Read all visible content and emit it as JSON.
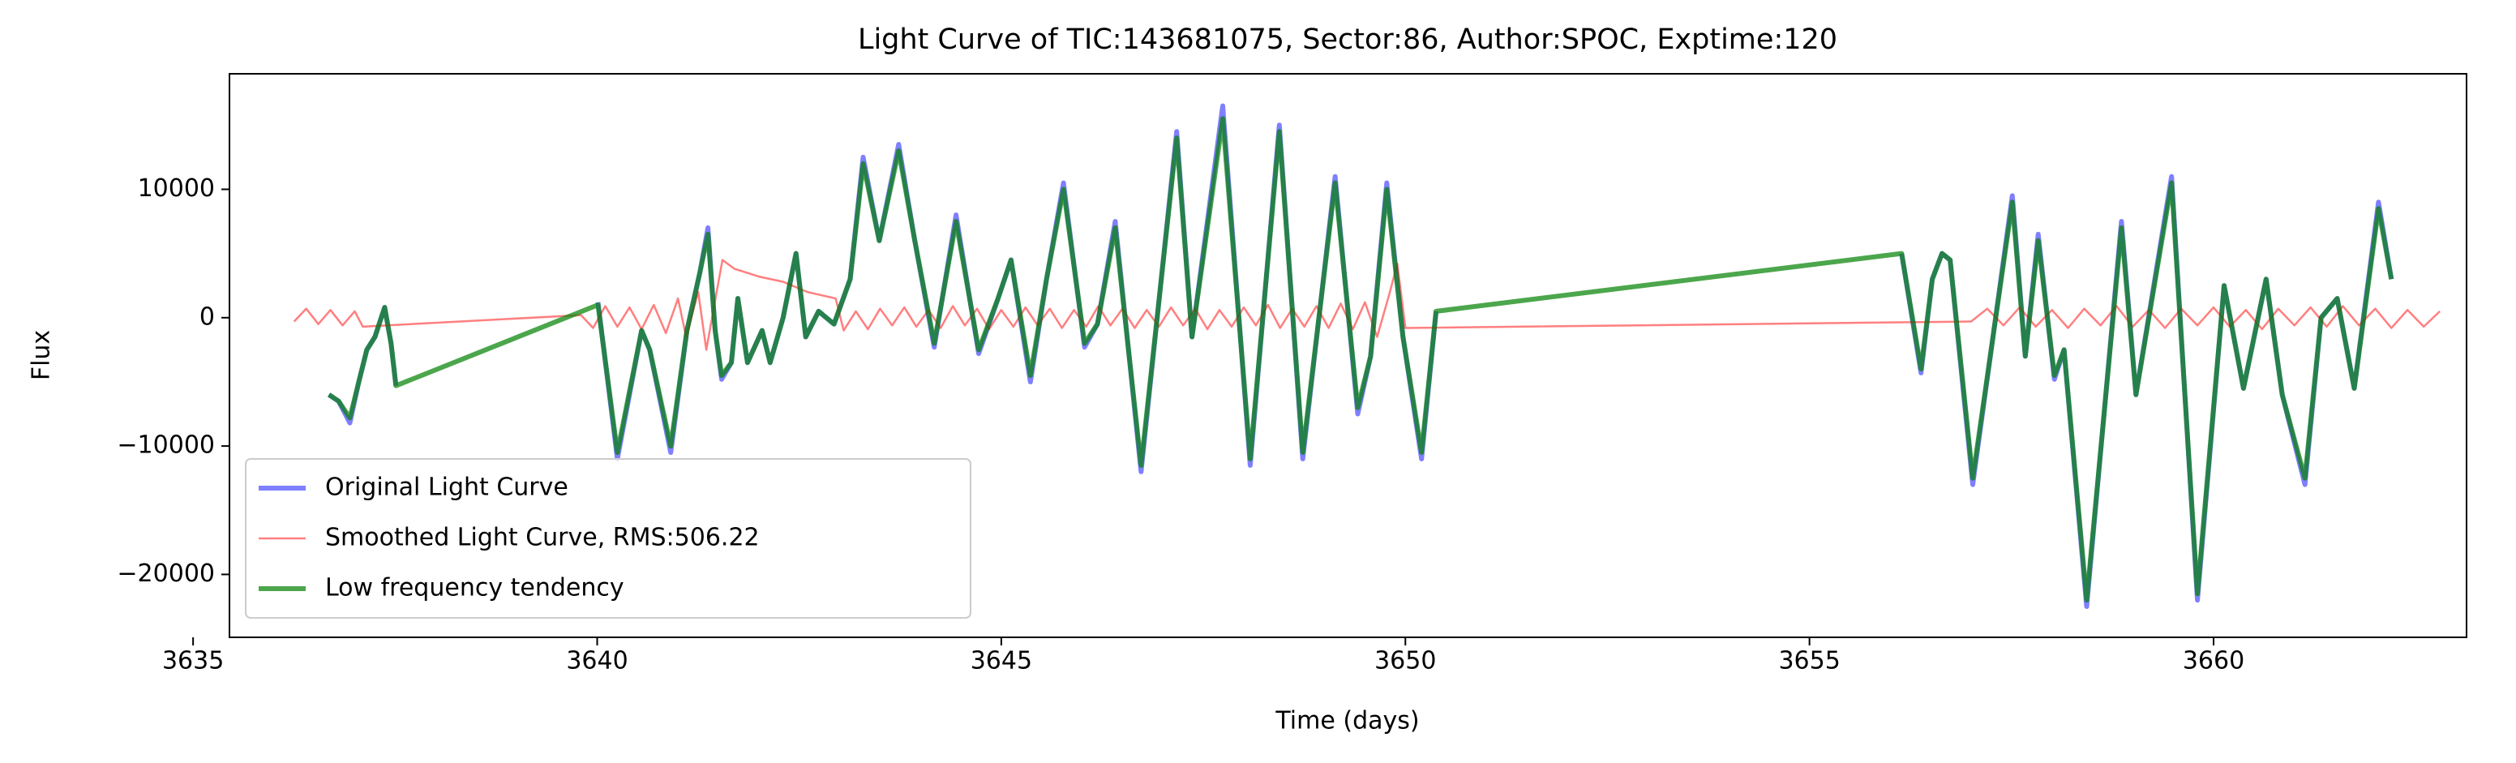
{
  "chart_data": {
    "type": "line",
    "title": "Light Curve of TIC:143681075, Sector:86, Author:SPOC, Exptime:120",
    "x_label": "Time (days)",
    "y_label": "Flux",
    "xlim": [
      3635.45,
      3663.13
    ],
    "ylim": [
      -24900,
      19000
    ],
    "xticks": [
      3635,
      3640,
      3645,
      3650,
      3655,
      3660
    ],
    "yticks": [
      {
        "value": -20000,
        "label": "−20000"
      },
      {
        "value": -10000,
        "label": "−10000"
      },
      0,
      10000
    ],
    "legend": "lower left",
    "series": [
      {
        "name": "Original Light Curve",
        "color": "#0000ff",
        "x": [
          3636.68,
          3636.8,
          3636.94,
          3637.05,
          3637.15,
          3637.25,
          3637.37,
          3637.45,
          3637.51,
          3638.7,
          3640.01,
          3640.25,
          3640.55,
          3640.65,
          3640.91,
          3641.11,
          3641.27,
          3641.37,
          3641.46,
          3641.54,
          3641.66,
          3641.74,
          3641.86,
          3642.04,
          3642.14,
          3642.3,
          3642.46,
          3642.58,
          3642.74,
          3642.93,
          3643.13,
          3643.29,
          3643.49,
          3643.73,
          3643.93,
          3644.17,
          3644.44,
          3644.72,
          3644.96,
          3645.12,
          3645.36,
          3645.56,
          3645.77,
          3646.03,
          3646.19,
          3646.41,
          3646.73,
          3647.17,
          3647.36,
          3647.74,
          3648.08,
          3648.44,
          3648.73,
          3649.13,
          3649.41,
          3649.57,
          3649.77,
          3649.97,
          3650.2,
          3650.38,
          3653.3,
          3656.14,
          3656.38,
          3656.52,
          3656.64,
          3656.74,
          3657.02,
          3657.51,
          3657.67,
          3657.83,
          3658.03,
          3658.15,
          3658.43,
          3658.86,
          3659.04,
          3659.48,
          3659.8,
          3660.13,
          3660.37,
          3660.65,
          3660.85,
          3661.13,
          3661.33,
          3661.53,
          3661.74,
          3662.04,
          3662.2
        ],
        "values": [
          -6000,
          -6500,
          -8200,
          -5000,
          -2500,
          -1500,
          800,
          -2000,
          -5300,
          null,
          1200,
          -11000,
          -1000,
          -2500,
          -10500,
          -1000,
          3500,
          7000,
          -1000,
          -4800,
          -3500,
          1500,
          -3500,
          -1000,
          -3500,
          0,
          5000,
          -1500,
          500,
          -500,
          3000,
          12500,
          6000,
          13500,
          6000,
          -2300,
          8000,
          -2800,
          1500,
          4500,
          -5000,
          3000,
          10500,
          -2300,
          -500,
          7500,
          -12000,
          14500,
          -1500,
          16500,
          -11500,
          15000,
          -11000,
          11000,
          -7500,
          -3000,
          10500,
          -1500,
          -11000,
          500,
          null,
          5000,
          -4300,
          3000,
          5000,
          4500,
          -13000,
          9500,
          -3000,
          6500,
          -4800,
          -2500,
          -22500,
          7500,
          -6000,
          11000,
          -22000,
          2500,
          -5500,
          3000,
          -6000,
          -13000,
          0,
          1500,
          -5500,
          9000,
          3000
        ]
      },
      {
        "name": "Smoothed Light Curve, RMS:506.22",
        "color": "#ff0000",
        "x": [
          3636.25,
          3636.4,
          3636.55,
          3636.7,
          3636.85,
          3637.0,
          3637.1,
          3639.8,
          3639.95,
          3640.1,
          3640.25,
          3640.4,
          3640.55,
          3640.7,
          3640.85,
          3641.0,
          3641.1,
          3641.25,
          3641.35,
          3641.45,
          3641.55,
          3641.7,
          3642.0,
          3642.3,
          3642.6,
          3642.95,
          3643.05,
          3643.2,
          3643.35,
          3643.5,
          3643.65,
          3643.8,
          3643.95,
          3644.1,
          3644.25,
          3644.4,
          3644.55,
          3644.7,
          3644.85,
          3645.0,
          3645.15,
          3645.3,
          3645.45,
          3645.6,
          3645.75,
          3645.9,
          3646.05,
          3646.2,
          3646.35,
          3646.5,
          3646.65,
          3646.8,
          3646.95,
          3647.1,
          3647.25,
          3647.4,
          3647.55,
          3647.7,
          3647.85,
          3648.0,
          3648.15,
          3648.3,
          3648.45,
          3648.6,
          3648.75,
          3648.9,
          3649.05,
          3649.2,
          3649.35,
          3649.5,
          3649.65,
          3649.8,
          3649.9,
          3650.0,
          3657.0,
          3657.2,
          3657.4,
          3657.6,
          3657.8,
          3658.0,
          3658.2,
          3658.4,
          3658.6,
          3658.8,
          3659.0,
          3659.2,
          3659.4,
          3659.6,
          3659.8,
          3660.0,
          3660.2,
          3660.4,
          3660.6,
          3660.8,
          3661.0,
          3661.2,
          3661.4,
          3661.6,
          3661.8,
          3662.0,
          3662.2,
          3662.4,
          3662.6,
          3662.8
        ],
        "values": [
          -300,
          700,
          -500,
          600,
          -600,
          500,
          -700,
          200,
          -800,
          900,
          -700,
          800,
          -900,
          1000,
          -1200,
          1500,
          -1500,
          2000,
          -2500,
          1000,
          4500,
          3800,
          3200,
          2800,
          2000,
          1500,
          -1000,
          500,
          -900,
          700,
          -600,
          800,
          -700,
          600,
          -800,
          900,
          -600,
          700,
          -900,
          600,
          -700,
          800,
          -600,
          700,
          -800,
          600,
          -700,
          900,
          -600,
          700,
          -800,
          600,
          -700,
          800,
          -600,
          700,
          -900,
          600,
          -700,
          800,
          -600,
          1000,
          -800,
          700,
          -700,
          900,
          -800,
          1100,
          -900,
          1200,
          -1500,
          1800,
          4200,
          -800,
          -300,
          700,
          -600,
          800,
          -700,
          600,
          -800,
          700,
          -600,
          900,
          -700,
          600,
          -800,
          700,
          -600,
          800,
          -700,
          600,
          -900,
          700,
          -600,
          800,
          -700,
          900,
          -600,
          700,
          -800,
          600,
          -700,
          500
        ]
      },
      {
        "name": "Low frequency tendency",
        "color": "#008000",
        "x": [
          3636.68,
          3636.8,
          3636.94,
          3637.05,
          3637.15,
          3637.25,
          3637.37,
          3637.45,
          3637.51,
          3640.01,
          3640.25,
          3640.55,
          3640.65,
          3640.91,
          3641.11,
          3641.27,
          3641.37,
          3641.46,
          3641.54,
          3641.66,
          3641.74,
          3641.86,
          3642.04,
          3642.14,
          3642.3,
          3642.46,
          3642.58,
          3642.74,
          3642.93,
          3643.13,
          3643.29,
          3643.49,
          3643.73,
          3643.93,
          3644.17,
          3644.44,
          3644.72,
          3644.96,
          3645.12,
          3645.36,
          3645.56,
          3645.77,
          3646.03,
          3646.19,
          3646.41,
          3646.73,
          3647.17,
          3647.36,
          3647.74,
          3648.08,
          3648.44,
          3648.73,
          3649.13,
          3649.41,
          3649.57,
          3649.77,
          3649.97,
          3650.2,
          3650.38,
          3656.14,
          3656.38,
          3656.52,
          3656.64,
          3656.74,
          3657.02,
          3657.51,
          3657.67,
          3657.83,
          3658.03,
          3658.15,
          3658.43,
          3658.86,
          3659.04,
          3659.48,
          3659.8,
          3660.13,
          3660.37,
          3660.65,
          3660.85,
          3661.13,
          3661.33,
          3661.53,
          3661.74,
          3662.04,
          3662.2
        ],
        "values": [
          -6000,
          -6500,
          -7800,
          -5000,
          -2500,
          -1500,
          800,
          -2000,
          -5300,
          1000,
          -10500,
          -1000,
          -2500,
          -10000,
          -1000,
          3500,
          6500,
          -1000,
          -4500,
          -3500,
          1500,
          -3500,
          -1000,
          -3500,
          0,
          5000,
          -1500,
          500,
          -500,
          3000,
          12000,
          6000,
          13000,
          6000,
          -2000,
          7500,
          -2500,
          1500,
          4500,
          -4500,
          3000,
          10000,
          -2000,
          -500,
          7000,
          -11500,
          14000,
          -1500,
          15500,
          -11000,
          14500,
          -10500,
          10500,
          -7000,
          -3000,
          10000,
          -1500,
          -10500,
          500,
          5000,
          -4000,
          3000,
          5000,
          4500,
          -12500,
          9000,
          -3000,
          6000,
          -4500,
          -2500,
          -22000,
          7000,
          -6000,
          10500,
          -21500,
          2500,
          -5500,
          3000,
          -6000,
          -12500,
          0,
          1500,
          -5500,
          8500,
          3000
        ]
      }
    ]
  }
}
